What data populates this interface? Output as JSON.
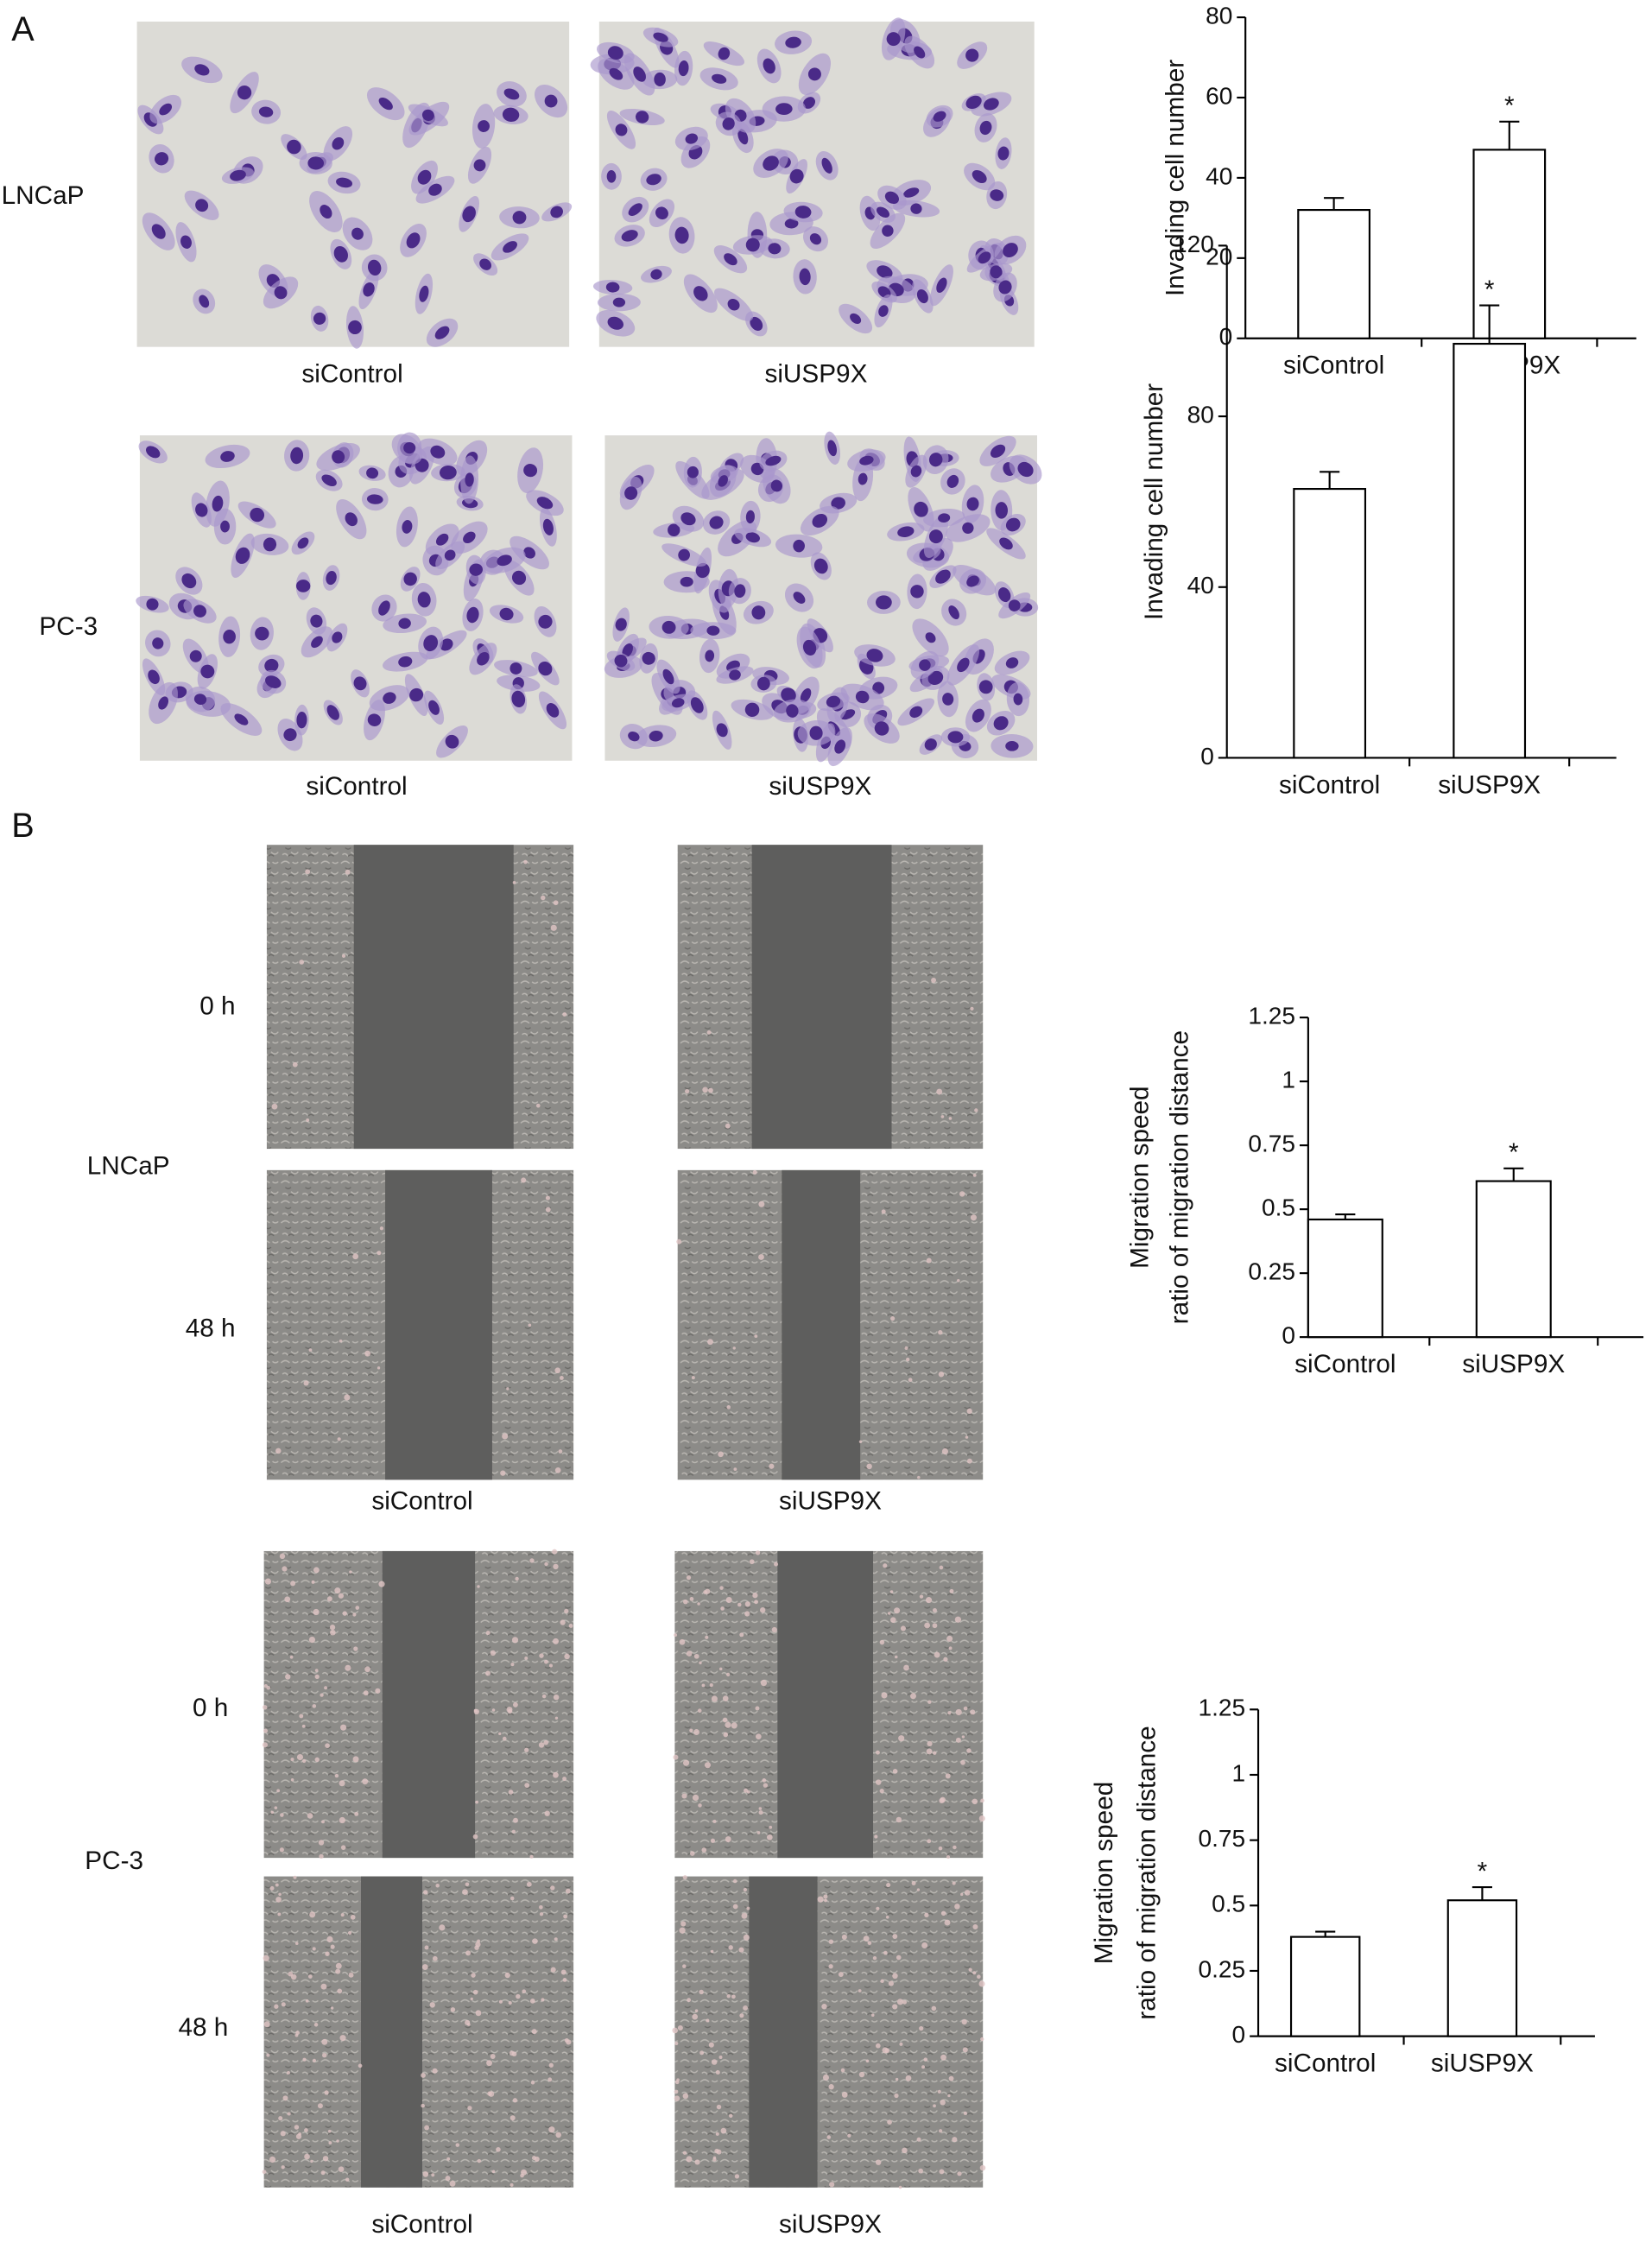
{
  "panel_labels": [
    "A",
    "B"
  ],
  "panel_a": {
    "rows": [
      {
        "cell_line": "LNCaP",
        "columns": [
          "siControl",
          "siUSP9X"
        ]
      },
      {
        "cell_line": "PC-3",
        "columns": [
          "siControl",
          "siUSP9X"
        ]
      }
    ]
  },
  "panel_b": {
    "rows": [
      {
        "cell_line": "LNCaP",
        "times": [
          "0 h",
          "48 h"
        ],
        "columns": [
          "siControl",
          "siUSP9X"
        ]
      },
      {
        "cell_line": "PC-3",
        "times": [
          "0 h",
          "48 h"
        ],
        "columns": [
          "siControl",
          "siUSP9X"
        ]
      }
    ]
  },
  "chart_data": [
    {
      "type": "bar",
      "ylabel": [
        "Invading cell number"
      ],
      "categories": [
        "siControl",
        "siUSP9X"
      ],
      "values": [
        32,
        47
      ],
      "errors": [
        3,
        7
      ],
      "significance": [
        null,
        "*"
      ],
      "color": "#ffffff",
      "edge_color": "#000000",
      "ylim": [
        0,
        80
      ],
      "yticks": [
        0,
        20,
        40,
        60,
        80
      ]
    },
    {
      "type": "bar",
      "ylabel": [
        "Invading cell number"
      ],
      "categories": [
        "siControl",
        "siUSP9X"
      ],
      "values": [
        63,
        97
      ],
      "errors": [
        4,
        9
      ],
      "significance": [
        null,
        "*"
      ],
      "color": "#ffffff",
      "edge_color": "#000000",
      "ylim": [
        0,
        120
      ],
      "yticks": [
        0,
        40,
        80,
        120
      ]
    },
    {
      "type": "bar",
      "ylabel": [
        "Migration speed",
        "ratio of migration distance"
      ],
      "categories": [
        "siControl",
        "siUSP9X"
      ],
      "values": [
        0.46,
        0.61
      ],
      "errors": [
        0.02,
        0.05
      ],
      "significance": [
        null,
        "*"
      ],
      "color": "#ffffff",
      "edge_color": "#000000",
      "ylim": [
        0,
        1.25
      ],
      "yticks": [
        0,
        0.25,
        0.5,
        0.75,
        1,
        1.25
      ]
    },
    {
      "type": "bar",
      "ylabel": [
        "Migration speed",
        "ratio of migration distance"
      ],
      "categories": [
        "siControl",
        "siUSP9X"
      ],
      "values": [
        0.38,
        0.52
      ],
      "errors": [
        0.02,
        0.05
      ],
      "significance": [
        null,
        "*"
      ],
      "color": "#ffffff",
      "edge_color": "#000000",
      "ylim": [
        0,
        1.25
      ],
      "yticks": [
        0,
        0.25,
        0.5,
        0.75,
        1,
        1.25
      ]
    }
  ]
}
